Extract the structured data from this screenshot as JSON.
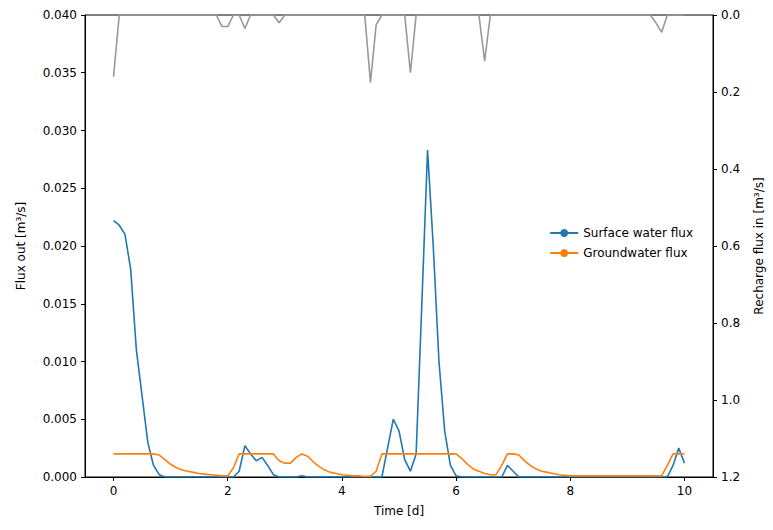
{
  "chart_data": {
    "type": "line",
    "x_label": "Time [d]",
    "y_label": "Flux out [m³/s]",
    "y2_label": "Recharge flux in [m³/s]",
    "xlim": [
      -0.5,
      10.5
    ],
    "xticks": [
      0,
      2,
      4,
      6,
      8,
      10
    ],
    "ylim": [
      0,
      0.04
    ],
    "yticks": [
      {
        "value": 0,
        "label": "0.000"
      },
      {
        "value": 0.005,
        "label": "0.005"
      },
      {
        "value": 0.01,
        "label": "0.010"
      },
      {
        "value": 0.015,
        "label": "0.015"
      },
      {
        "value": 0.02,
        "label": "0.020"
      },
      {
        "value": 0.025,
        "label": "0.025"
      },
      {
        "value": 0.03,
        "label": "0.030"
      },
      {
        "value": 0.035,
        "label": "0.035"
      },
      {
        "value": 0.04,
        "label": "0.040"
      }
    ],
    "y2lim": [
      0,
      1.2
    ],
    "y2ticks": [
      {
        "value": 0,
        "label": "0.0"
      },
      {
        "value": 0.2,
        "label": "0.2"
      },
      {
        "value": 0.4,
        "label": "0.4"
      },
      {
        "value": 0.6,
        "label": "0.6"
      },
      {
        "value": 0.8,
        "label": "0.8"
      },
      {
        "value": 1,
        "label": "1.0"
      },
      {
        "value": 1.2,
        "label": "1.2"
      }
    ],
    "grid": false,
    "legend": "right",
    "x": [
      0,
      0.1,
      0.2,
      0.3,
      0.4,
      0.5,
      0.6,
      0.7,
      0.8,
      0.9,
      1,
      1.1,
      1.2,
      1.3,
      1.4,
      1.5,
      1.6,
      1.7,
      1.8,
      1.9,
      2,
      2.1,
      2.2,
      2.3,
      2.4,
      2.5,
      2.6,
      2.7,
      2.8,
      2.9,
      3,
      3.1,
      3.2,
      3.3,
      3.4,
      3.5,
      3.6,
      3.7,
      3.8,
      3.9,
      4,
      4.1,
      4.2,
      4.3,
      4.4,
      4.5,
      4.6,
      4.7,
      4.8,
      4.9,
      5,
      5.1,
      5.2,
      5.3,
      5.4,
      5.5,
      5.6,
      5.7,
      5.8,
      5.9,
      6,
      6.1,
      6.2,
      6.3,
      6.4,
      6.5,
      6.6,
      6.7,
      6.8,
      6.9,
      7,
      7.1,
      7.2,
      7.3,
      7.4,
      7.5,
      7.6,
      7.7,
      7.8,
      7.9,
      8,
      8.1,
      8.2,
      8.3,
      8.4,
      8.5,
      8.6,
      8.7,
      8.8,
      8.9,
      9,
      9.1,
      9.2,
      9.3,
      9.4,
      9.5,
      9.6,
      9.7,
      9.8,
      9.9,
      10
    ],
    "series": [
      {
        "name": "Surface water flux",
        "color": "#1f77b4",
        "axis": "y",
        "values": [
          0.0222,
          0.0218,
          0.021,
          0.018,
          0.011,
          0.007,
          0.003,
          0.001,
          0.0002,
          0,
          0,
          0,
          0,
          0,
          0,
          0,
          0,
          0,
          0,
          0,
          0,
          0,
          0.0005,
          0.0027,
          0.002,
          0.0014,
          0.0017,
          0.001,
          0.0002,
          0,
          0,
          0,
          0,
          0.0001,
          0,
          0,
          0,
          0,
          0,
          0,
          0,
          0,
          0,
          0,
          0,
          0,
          0,
          0,
          0.0025,
          0.005,
          0.004,
          0.0015,
          0.0005,
          0.002,
          0.015,
          0.0283,
          0.02,
          0.01,
          0.004,
          0.001,
          0.0001,
          0,
          0,
          0,
          0,
          0,
          0,
          0,
          0,
          0.001,
          0.0005,
          0,
          0,
          0,
          0,
          0,
          0,
          0,
          0,
          0,
          0,
          0,
          0,
          0,
          0,
          0,
          0,
          0,
          0,
          0,
          0,
          0,
          0,
          0,
          0,
          0,
          0,
          0,
          0.001,
          0.0025,
          0.0012
        ]
      },
      {
        "name": "Groundwater flux",
        "color": "#ff7f0e",
        "axis": "y",
        "values": [
          0.002,
          0.002,
          0.002,
          0.002,
          0.002,
          0.002,
          0.002,
          0.002,
          0.0019,
          0.0015,
          0.0011,
          0.0008,
          0.0006,
          0.0005,
          0.0004,
          0.0003,
          0.00025,
          0.0002,
          0.00015,
          0.0001,
          0.0001,
          0.0008,
          0.002,
          0.002,
          0.002,
          0.002,
          0.002,
          0.002,
          0.002,
          0.0014,
          0.0012,
          0.0012,
          0.0017,
          0.002,
          0.0018,
          0.0013,
          0.0009,
          0.0006,
          0.0004,
          0.0003,
          0.0002,
          0.00015,
          0.0001,
          0.0001,
          5e-05,
          5e-05,
          0.0005,
          0.002,
          0.002,
          0.002,
          0.002,
          0.002,
          0.002,
          0.002,
          0.002,
          0.002,
          0.002,
          0.002,
          0.002,
          0.002,
          0.002,
          0.0016,
          0.0011,
          0.0007,
          0.0005,
          0.0003,
          0.0002,
          0.0002,
          0.001,
          0.002,
          0.002,
          0.0019,
          0.0014,
          0.001,
          0.0007,
          0.0005,
          0.0004,
          0.0003,
          0.0002,
          0.00015,
          0.0001,
          0.0001,
          0.0001,
          0.0001,
          0.0001,
          0.0001,
          0.0001,
          0.0001,
          0.0001,
          0.0001,
          0.0001,
          0.0001,
          0.0001,
          0.0001,
          0.0001,
          0.0001,
          0.0001,
          0.001,
          0.002,
          0.002,
          0.002
        ]
      },
      {
        "color": "#999999",
        "axis": "y2",
        "values": [
          0.16,
          0,
          0,
          0,
          0,
          0,
          0,
          0,
          0,
          0,
          0,
          0,
          0,
          0,
          0,
          0,
          0,
          0,
          0,
          0.03,
          0.03,
          0,
          0,
          0.035,
          0,
          0,
          0,
          0,
          0,
          0.02,
          0,
          0,
          0,
          0,
          0,
          0,
          0,
          0,
          0,
          0,
          0,
          0,
          0,
          0,
          0,
          0.175,
          0.025,
          0,
          0,
          0,
          0,
          0,
          0.15,
          0,
          0,
          0,
          0,
          0,
          0,
          0,
          0,
          0,
          0,
          0,
          0,
          0.12,
          0,
          0,
          0,
          0,
          0,
          0,
          0,
          0,
          0,
          0,
          0,
          0,
          0,
          0,
          0,
          0,
          0,
          0,
          0,
          0,
          0,
          0,
          0,
          0,
          0,
          0,
          0,
          0,
          0,
          0.02,
          0.045,
          0,
          0,
          0,
          0
        ]
      }
    ]
  }
}
